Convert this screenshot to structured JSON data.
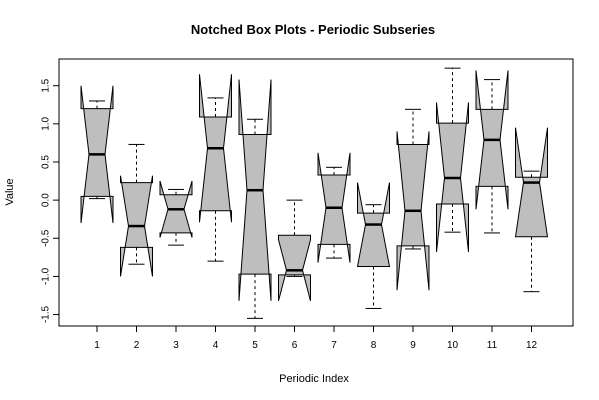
{
  "chart_data": {
    "type": "notched-boxplot",
    "title": "Notched Box Plots - Periodic Subseries",
    "xlabel": "Periodic Index",
    "ylabel": "Value",
    "ylim": [
      -1.65,
      1.85
    ],
    "yticks": [
      -1.5,
      -1.0,
      -0.5,
      0.0,
      0.5,
      1.0,
      1.5
    ],
    "ytick_labels": [
      "-1.5",
      "-1.0",
      "-0.5",
      "0.0",
      "0.5",
      "1.0",
      "1.5"
    ],
    "grid": false,
    "box_color": "#bebebe",
    "boxes": [
      {
        "label": "1",
        "min": 0.02,
        "q1": 0.05,
        "median": 0.6,
        "q3": 1.2,
        "max": 1.3,
        "notch_lo": -0.3,
        "notch_hi": 1.5
      },
      {
        "label": "2",
        "min": -0.84,
        "q1": -0.62,
        "median": -0.34,
        "q3": 0.23,
        "max": 0.73,
        "notch_lo": -1.0,
        "notch_hi": 0.32
      },
      {
        "label": "3",
        "min": -0.59,
        "q1": -0.43,
        "median": -0.12,
        "q3": 0.07,
        "max": 0.14,
        "notch_lo": -0.49,
        "notch_hi": 0.25
      },
      {
        "label": "4",
        "min": -0.8,
        "q1": -0.14,
        "median": 0.68,
        "q3": 1.09,
        "max": 1.34,
        "notch_lo": -0.29,
        "notch_hi": 1.65
      },
      {
        "label": "5",
        "min": -1.55,
        "q1": -0.97,
        "median": 0.13,
        "q3": 0.86,
        "max": 1.06,
        "notch_lo": -1.32,
        "notch_hi": 1.58
      },
      {
        "label": "6",
        "min": -1.0,
        "q1": -0.98,
        "median": -0.92,
        "q3": -0.46,
        "max": 0.0,
        "notch_lo": -1.32,
        "notch_hi": -0.52
      },
      {
        "label": "7",
        "min": -0.76,
        "q1": -0.58,
        "median": -0.1,
        "q3": 0.33,
        "max": 0.43,
        "notch_lo": -0.82,
        "notch_hi": 0.62
      },
      {
        "label": "8",
        "min": -1.42,
        "q1": -0.87,
        "median": -0.32,
        "q3": -0.17,
        "max": -0.06,
        "notch_lo": -0.87,
        "notch_hi": 0.23
      },
      {
        "label": "9",
        "min": -0.64,
        "q1": -0.6,
        "median": -0.14,
        "q3": 0.73,
        "max": 1.19,
        "notch_lo": -1.18,
        "notch_hi": 0.9
      },
      {
        "label": "10",
        "min": -0.42,
        "q1": -0.05,
        "median": 0.29,
        "q3": 1.01,
        "max": 1.73,
        "notch_lo": -0.68,
        "notch_hi": 1.28
      },
      {
        "label": "11",
        "min": -0.43,
        "q1": 0.18,
        "median": 0.79,
        "q3": 1.19,
        "max": 1.58,
        "notch_lo": -0.12,
        "notch_hi": 1.7
      },
      {
        "label": "12",
        "min": -1.2,
        "q1": -0.48,
        "median": 0.23,
        "q3": 0.3,
        "max": 0.38,
        "notch_lo": -0.48,
        "notch_hi": 0.95
      }
    ]
  }
}
